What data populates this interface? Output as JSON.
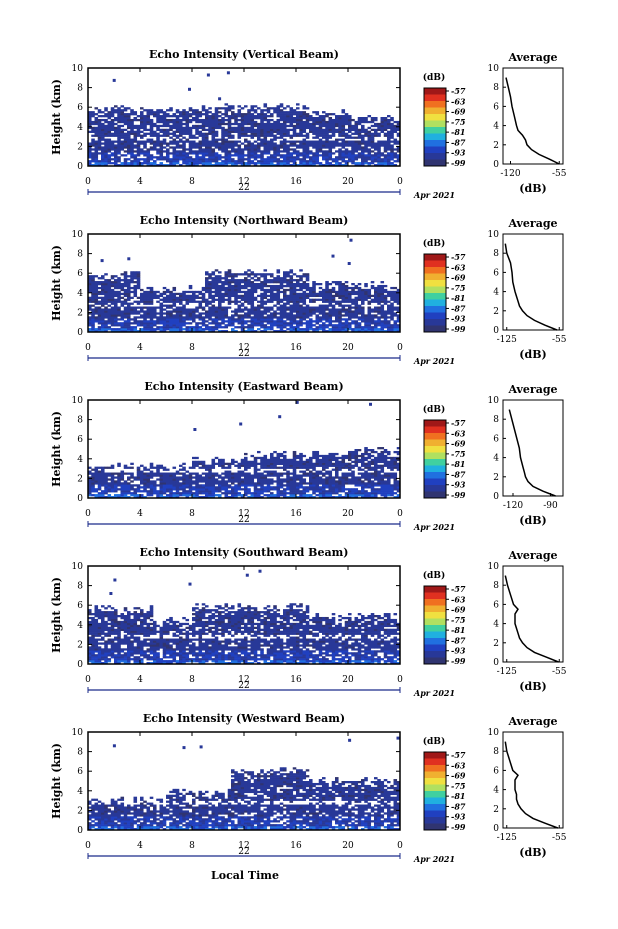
{
  "common": {
    "ylabel": "Height (km)",
    "colorbar_unit": "(dB)",
    "colorbar_ticks": [
      "-57",
      "-63",
      "-69",
      "-75",
      "-81",
      "-87",
      "-93",
      "-99"
    ],
    "colorbar_colors": [
      "#a01818",
      "#e03020",
      "#f07020",
      "#f0b030",
      "#f0e040",
      "#b0e060",
      "#40d0a0",
      "#20b0e0",
      "#2070e0",
      "#2040c0",
      "#283898",
      "#303470"
    ],
    "date_center": "22",
    "date_suffix": "Apr 2021",
    "avg_title": "Average",
    "avg_xlabel": "(dB)",
    "xlabel": "Local Time"
  },
  "chart_data": [
    {
      "type": "heatmap",
      "title": "Echo Intensity (Vertical Beam)",
      "xlabel": "",
      "ylabel": "Height (km)",
      "x_ticks": [
        "0",
        "4",
        "8",
        "12",
        "16",
        "20",
        "0"
      ],
      "y_ticks": [
        "0",
        "2",
        "4",
        "6",
        "8",
        "10"
      ],
      "xlim": [
        0,
        24
      ],
      "ylim": [
        0,
        10
      ],
      "colorbar_range": [
        -99,
        -57
      ],
      "avg_profile": {
        "x_ticks": [
          "-120",
          "-55"
        ],
        "xlim": [
          -130,
          -50
        ],
        "height": [
          0,
          0.5,
          1,
          1.5,
          2,
          2.5,
          3,
          3.5,
          4,
          5,
          6,
          7,
          8,
          9
        ],
        "db": [
          -55,
          -68,
          -82,
          -92,
          -98,
          -100,
          -104,
          -110,
          -112,
          -115,
          -118,
          -120,
          -123,
          -126
        ]
      }
    },
    {
      "type": "heatmap",
      "title": "Echo Intensity (Northward Beam)",
      "xlabel": "",
      "ylabel": "Height (km)",
      "x_ticks": [
        "0",
        "4",
        "8",
        "12",
        "16",
        "20",
        "0"
      ],
      "y_ticks": [
        "0",
        "2",
        "4",
        "6",
        "8",
        "10"
      ],
      "xlim": [
        0,
        24
      ],
      "ylim": [
        0,
        10
      ],
      "colorbar_range": [
        -99,
        -57
      ],
      "avg_profile": {
        "x_ticks": [
          "-125",
          "-55"
        ],
        "xlim": [
          -130,
          -50
        ],
        "height": [
          0,
          0.5,
          1,
          1.5,
          2,
          2.5,
          3,
          3.5,
          4,
          5,
          6,
          7,
          8,
          9
        ],
        "db": [
          -58,
          -74,
          -88,
          -98,
          -104,
          -108,
          -110,
          -112,
          -114,
          -117,
          -118,
          -120,
          -125,
          -127
        ]
      }
    },
    {
      "type": "heatmap",
      "title": "Echo Intensity (Eastward Beam)",
      "xlabel": "",
      "ylabel": "Height (km)",
      "x_ticks": [
        "0",
        "4",
        "8",
        "12",
        "16",
        "20",
        "0"
      ],
      "y_ticks": [
        "0",
        "2",
        "4",
        "6",
        "8",
        "10"
      ],
      "xlim": [
        0,
        24
      ],
      "ylim": [
        0,
        10
      ],
      "colorbar_range": [
        -99,
        -57
      ],
      "avg_profile": {
        "x_ticks": [
          "-120",
          "-90"
        ],
        "xlim": [
          -128,
          -80
        ],
        "height": [
          0,
          0.5,
          1,
          1.5,
          2,
          2.5,
          3,
          4,
          5,
          6,
          7,
          8,
          9
        ],
        "db": [
          -86,
          -96,
          -104,
          -108,
          -110,
          -111,
          -112,
          -114,
          -115,
          -117,
          -119,
          -121,
          -123
        ]
      }
    },
    {
      "type": "heatmap",
      "title": "Echo Intensity (Southward Beam)",
      "xlabel": "",
      "ylabel": "Height (km)",
      "x_ticks": [
        "0",
        "4",
        "8",
        "12",
        "16",
        "20",
        "0"
      ],
      "y_ticks": [
        "0",
        "2",
        "4",
        "6",
        "8",
        "10"
      ],
      "xlim": [
        0,
        24
      ],
      "ylim": [
        0,
        10
      ],
      "colorbar_range": [
        -99,
        -57
      ],
      "avg_profile": {
        "x_ticks": [
          "-125",
          "-55"
        ],
        "xlim": [
          -130,
          -50
        ],
        "height": [
          0,
          0.5,
          1,
          1.5,
          2,
          2.5,
          3,
          3.5,
          4,
          5,
          5.5,
          6,
          7,
          8,
          9
        ],
        "db": [
          -56,
          -72,
          -88,
          -98,
          -104,
          -108,
          -110,
          -112,
          -114,
          -114,
          -110,
          -116,
          -120,
          -124,
          -127
        ]
      }
    },
    {
      "type": "heatmap",
      "title": "Echo Intensity (Westward Beam)",
      "xlabel": "Local Time",
      "ylabel": "Height (km)",
      "x_ticks": [
        "0",
        "4",
        "8",
        "12",
        "16",
        "20",
        "0"
      ],
      "y_ticks": [
        "0",
        "2",
        "4",
        "6",
        "8",
        "10"
      ],
      "xlim": [
        0,
        24
      ],
      "ylim": [
        0,
        10
      ],
      "colorbar_range": [
        -99,
        -57
      ],
      "avg_profile": {
        "x_ticks": [
          "-125",
          "-55"
        ],
        "xlim": [
          -130,
          -50
        ],
        "height": [
          0,
          0.5,
          1,
          1.5,
          2,
          2.5,
          3,
          3.5,
          4,
          5,
          5.5,
          6,
          7,
          8,
          9
        ],
        "db": [
          -57,
          -74,
          -90,
          -100,
          -106,
          -110,
          -112,
          -112,
          -114,
          -114,
          -110,
          -117,
          -121,
          -125,
          -127
        ]
      }
    }
  ]
}
